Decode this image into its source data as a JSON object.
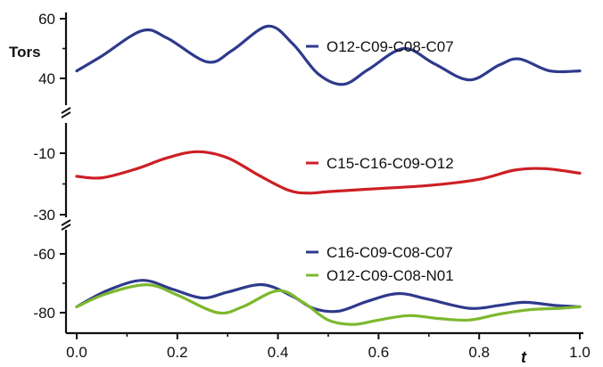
{
  "chart_data": {
    "type": "line",
    "xlabel": "t",
    "ylabel": "Tors",
    "x_ticks": [
      "0.0",
      "0.2",
      "0.4",
      "0.6",
      "0.8",
      "1.0"
    ],
    "x_range": [
      0.0,
      1.0
    ],
    "grid": false,
    "legend_placement": "inside, right of each panel",
    "panels": [
      {
        "ylim": [
          30,
          60
        ],
        "y_tick_labels": [
          "60",
          "40"
        ],
        "y_tick_values": [
          60,
          40
        ],
        "series": [
          {
            "name": "O12-C09-C08-C07",
            "color": "#2e3a8c",
            "x": [
              0.0,
              0.05,
              0.13,
              0.18,
              0.26,
              0.31,
              0.38,
              0.43,
              0.48,
              0.53,
              0.58,
              0.65,
              0.71,
              0.78,
              0.84,
              0.88,
              0.94,
              1.0
            ],
            "y": [
              42.5,
              47.5,
              56.0,
              53.5,
              45.5,
              49.5,
              57.5,
              51.5,
              41.5,
              38.0,
              43.0,
              50.0,
              45.0,
              39.5,
              44.5,
              46.5,
              42.5,
              42.5
            ]
          }
        ]
      },
      {
        "ylim": [
          -32,
          0
        ],
        "y_tick_labels": [
          "-10",
          "-30"
        ],
        "y_tick_values": [
          -10,
          -30
        ],
        "series": [
          {
            "name": "C15-C16-C09-O12",
            "color": "#cc1f24",
            "x": [
              0.0,
              0.05,
              0.12,
              0.18,
              0.24,
              0.3,
              0.36,
              0.42,
              0.46,
              0.5,
              0.55,
              0.6,
              0.7,
              0.8,
              0.87,
              0.93,
              1.0
            ],
            "y": [
              -17.5,
              -18.0,
              -15.0,
              -11.5,
              -9.5,
              -11.5,
              -17.0,
              -22.0,
              -23.0,
              -22.5,
              -22.0,
              -21.5,
              -20.5,
              -18.5,
              -15.5,
              -15.0,
              -16.5
            ]
          }
        ]
      },
      {
        "ylim": [
          -83,
          -56
        ],
        "y_tick_labels": [
          "-60",
          "-80"
        ],
        "y_tick_values": [
          -60,
          -80
        ],
        "series": [
          {
            "name": "C16-C09-C08-C07",
            "color": "#2e3a8c",
            "x": [
              0.0,
              0.06,
              0.13,
              0.19,
              0.25,
              0.3,
              0.37,
              0.43,
              0.47,
              0.52,
              0.58,
              0.64,
              0.7,
              0.78,
              0.84,
              0.89,
              0.95,
              1.0
            ],
            "y": [
              -78.0,
              -72.5,
              -69.0,
              -72.0,
              -75.0,
              -73.0,
              -70.5,
              -74.5,
              -78.5,
              -79.5,
              -76.0,
              -73.5,
              -75.5,
              -78.5,
              -77.5,
              -76.5,
              -77.5,
              -78.0
            ]
          },
          {
            "name": "O12-C09-C08-N01",
            "color": "#7db82e",
            "x": [
              0.0,
              0.06,
              0.14,
              0.2,
              0.28,
              0.33,
              0.4,
              0.45,
              0.5,
              0.55,
              0.6,
              0.66,
              0.72,
              0.78,
              0.84,
              0.9,
              0.96,
              1.0
            ],
            "y": [
              -78.0,
              -73.5,
              -70.5,
              -74.0,
              -80.0,
              -78.0,
              -72.5,
              -76.5,
              -82.5,
              -84.0,
              -82.5,
              -81.0,
              -82.0,
              -82.5,
              -80.5,
              -79.0,
              -78.5,
              -78.0
            ]
          }
        ]
      }
    ]
  }
}
